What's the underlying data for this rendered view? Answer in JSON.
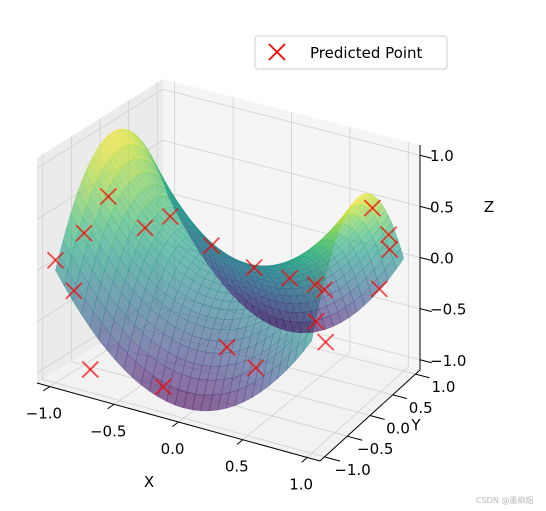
{
  "chart_data": {
    "type": "scatter",
    "projection": "3d",
    "surface": {
      "function": "z = x^2 - y^2",
      "colormap": "viridis",
      "alpha": 0.6
    },
    "xlabel": "X",
    "ylabel": "Y",
    "zlabel": "Z",
    "xlim": [
      -1.1,
      1.1
    ],
    "ylim": [
      -1.1,
      1.1
    ],
    "zlim": [
      -1.1,
      1.1
    ],
    "x_ticks": [
      "−1.0",
      "−0.5",
      "0.0",
      "0.5",
      "1.0"
    ],
    "y_ticks": [
      "−1.0",
      "−0.5",
      "0.0",
      "0.5",
      "1.0"
    ],
    "z_ticks": [
      "−1.0",
      "−0.5",
      "0.0",
      "0.5",
      "1.0"
    ],
    "grid": true,
    "legend": {
      "placement": "top-right",
      "entries": [
        {
          "label": "Predicted Point",
          "marker": "x",
          "color": "#ff0000"
        }
      ]
    },
    "series": [
      {
        "name": "Predicted Point",
        "color": "#ff0000",
        "marker": "x",
        "points": [
          {
            "x": -0.9,
            "y": -0.72,
            "z": 0.3
          },
          {
            "x": -0.85,
            "y": -0.4,
            "z": 0.56
          },
          {
            "x": -0.55,
            "y": 0.05,
            "z": 0.3
          },
          {
            "x": -0.3,
            "y": 0.25,
            "z": 0.02
          },
          {
            "x": -0.02,
            "y": 0.42,
            "z": -0.17
          },
          {
            "x": 0.22,
            "y": 0.55,
            "z": -0.25
          },
          {
            "x": 0.95,
            "y": 0.8,
            "z": 0.3
          },
          {
            "x": 0.95,
            "y": 0.45,
            "z": 0.7
          },
          {
            "x": 0.9,
            "y": 0.95,
            "z": 0.08
          },
          {
            "x": 0.35,
            "y": 0.75,
            "z": -0.35
          },
          {
            "x": -1.0,
            "y": -1.0,
            "z": 0.1
          },
          {
            "x": -0.9,
            "y": -0.9,
            "z": -0.2
          },
          {
            "x": -0.6,
            "y": -0.3,
            "z": 0.3
          },
          {
            "x": -0.75,
            "y": -0.95,
            "z": -0.9
          },
          {
            "x": -0.2,
            "y": -0.9,
            "z": -0.9
          },
          {
            "x": 0.1,
            "y": -0.4,
            "z": -0.6
          },
          {
            "x": 0.35,
            "y": -0.45,
            "z": -0.7
          },
          {
            "x": 0.6,
            "y": 0.15,
            "z": -0.4
          },
          {
            "x": 0.7,
            "y": 0.1,
            "z": -0.55
          },
          {
            "x": 0.95,
            "y": 0.6,
            "z": -0.15
          },
          {
            "x": 0.45,
            "y": 0.7,
            "z": -0.35
          }
        ]
      }
    ]
  },
  "watermark": "CSDN @墨柳烟"
}
